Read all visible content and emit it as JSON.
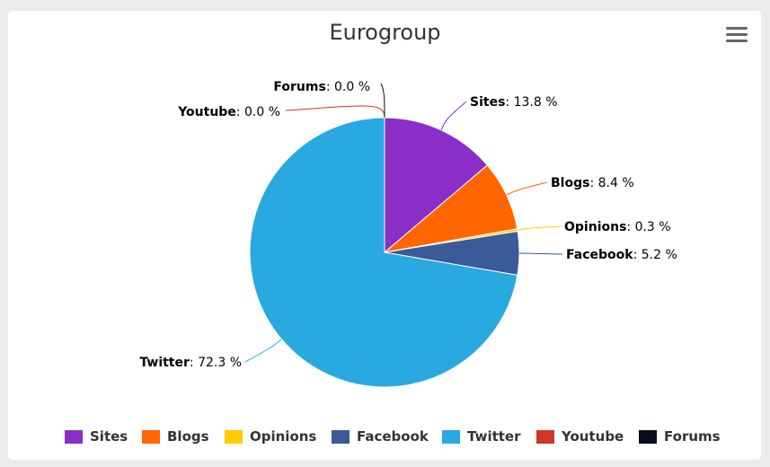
{
  "chart_data": {
    "type": "pie",
    "title": "Eurogroup",
    "unit": "%",
    "slices": [
      {
        "label": "Sites",
        "value": 13.8,
        "value_text": "13.8 %",
        "color": "#8b2ec8"
      },
      {
        "label": "Blogs",
        "value": 8.4,
        "value_text": "8.4 %",
        "color": "#ff6600"
      },
      {
        "label": "Opinions",
        "value": 0.3,
        "value_text": "0.3 %",
        "color": "#ffcc00"
      },
      {
        "label": "Facebook",
        "value": 5.2,
        "value_text": "5.2 %",
        "color": "#3b5a98"
      },
      {
        "label": "Twitter",
        "value": 72.3,
        "value_text": "72.3 %",
        "color": "#29a9e0"
      },
      {
        "label": "Youtube",
        "value": 0.0,
        "value_text": "0.0 %",
        "color": "#d03527"
      },
      {
        "label": "Forums",
        "value": 0.0,
        "value_text": "0.0 %",
        "color": "#0b0d1f"
      }
    ],
    "legend_position": "bottom"
  },
  "menu_icon": "hamburger-menu-icon"
}
